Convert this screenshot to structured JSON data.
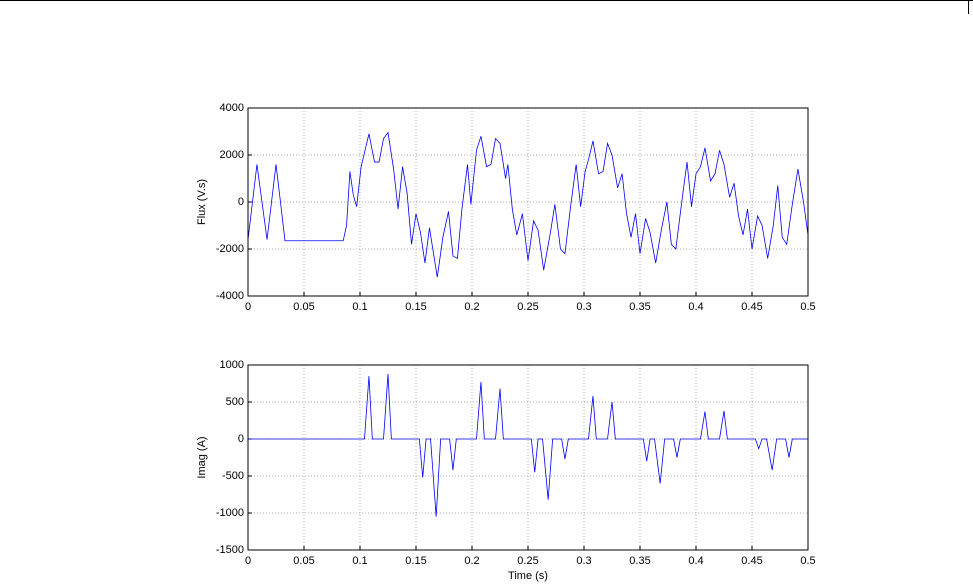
{
  "chart_data": [
    {
      "type": "line",
      "ylabel": "Flux (V.s)",
      "color": "#0000ff",
      "grid": true,
      "xlim": [
        0,
        0.5
      ],
      "xticks": [
        0,
        0.05,
        0.1,
        0.15,
        0.2,
        0.25,
        0.3,
        0.35,
        0.4,
        0.45,
        0.5
      ],
      "ylim": [
        -4000,
        4000
      ],
      "yticks": [
        -4000,
        -2000,
        0,
        2000,
        4000
      ],
      "x": [
        0,
        0.004,
        0.008,
        0.0125,
        0.017,
        0.021,
        0.025,
        0.029,
        0.033,
        0.085,
        0.088,
        0.091,
        0.094,
        0.097,
        0.101,
        0.105,
        0.108,
        0.113,
        0.117,
        0.121,
        0.125,
        0.13,
        0.134,
        0.138,
        0.142,
        0.146,
        0.15,
        0.154,
        0.158,
        0.162,
        0.166,
        0.169,
        0.174,
        0.179,
        0.183,
        0.187,
        0.191,
        0.196,
        0.199,
        0.204,
        0.208,
        0.213,
        0.217,
        0.221,
        0.225,
        0.23,
        0.232,
        0.236,
        0.24,
        0.245,
        0.25,
        0.255,
        0.259,
        0.264,
        0.27,
        0.274,
        0.279,
        0.283,
        0.288,
        0.293,
        0.297,
        0.301,
        0.304,
        0.308,
        0.313,
        0.317,
        0.321,
        0.325,
        0.33,
        0.334,
        0.338,
        0.342,
        0.346,
        0.35,
        0.355,
        0.359,
        0.364,
        0.369,
        0.374,
        0.378,
        0.382,
        0.387,
        0.392,
        0.396,
        0.4,
        0.404,
        0.408,
        0.413,
        0.417,
        0.421,
        0.425,
        0.43,
        0.434,
        0.438,
        0.442,
        0.446,
        0.45,
        0.455,
        0.459,
        0.464,
        0.469,
        0.473,
        0.477,
        0.481,
        0.486,
        0.491,
        0.496,
        0.5
      ],
      "values": [
        -1600,
        0,
        1600,
        0,
        -1600,
        0,
        1600,
        0,
        -1650,
        -1650,
        -1000,
        1300,
        300,
        -200,
        1500,
        2300,
        2900,
        1700,
        1700,
        2700,
        2950,
        1400,
        -300,
        1500,
        400,
        -1800,
        -500,
        -1300,
        -2600,
        -1100,
        -2300,
        -3200,
        -1500,
        -400,
        -2300,
        -2400,
        -300,
        1600,
        -100,
        2200,
        2800,
        1500,
        1600,
        2700,
        2500,
        1000,
        1600,
        -300,
        -1400,
        -500,
        -2500,
        -800,
        -1200,
        -2900,
        -1300,
        -100,
        -2000,
        -2200,
        -200,
        1600,
        -200,
        1300,
        1800,
        2600,
        1200,
        1300,
        2500,
        2000,
        600,
        1200,
        -500,
        -1500,
        -500,
        -2200,
        -700,
        -1300,
        -2600,
        -1200,
        0,
        -1800,
        -2000,
        -100,
        1700,
        -200,
        1200,
        1500,
        2300,
        900,
        1200,
        2200,
        1600,
        200,
        800,
        -600,
        -1400,
        -300,
        -2000,
        -600,
        -1000,
        -2400,
        -1000,
        700,
        -1500,
        -1800,
        -100,
        1400,
        0,
        -1400
      ]
    },
    {
      "type": "line",
      "xlabel": "Time (s)",
      "ylabel": "Imag (A)",
      "color": "#0000ff",
      "grid": true,
      "xlim": [
        0,
        0.5
      ],
      "xticks": [
        0,
        0.05,
        0.1,
        0.15,
        0.2,
        0.25,
        0.3,
        0.35,
        0.4,
        0.45,
        0.5
      ],
      "ylim": [
        -1500,
        1000
      ],
      "yticks": [
        -1500,
        -1000,
        -500,
        0,
        500,
        1000
      ],
      "x": [
        0,
        0.104,
        0.108,
        0.111,
        0.121,
        0.125,
        0.128,
        0.153,
        0.156,
        0.159,
        0.163,
        0.168,
        0.172,
        0.18,
        0.183,
        0.186,
        0.204,
        0.208,
        0.211,
        0.221,
        0.225,
        0.228,
        0.253,
        0.256,
        0.259,
        0.263,
        0.268,
        0.272,
        0.28,
        0.283,
        0.286,
        0.304,
        0.308,
        0.311,
        0.321,
        0.325,
        0.328,
        0.353,
        0.356,
        0.359,
        0.363,
        0.368,
        0.372,
        0.38,
        0.383,
        0.386,
        0.404,
        0.408,
        0.411,
        0.421,
        0.425,
        0.428,
        0.453,
        0.456,
        0.459,
        0.463,
        0.468,
        0.472,
        0.48,
        0.483,
        0.486,
        0.5
      ],
      "values": [
        0,
        0,
        850,
        0,
        0,
        880,
        0,
        0,
        -520,
        0,
        0,
        -1050,
        0,
        0,
        -420,
        0,
        0,
        770,
        0,
        0,
        680,
        0,
        0,
        -450,
        0,
        0,
        -820,
        0,
        0,
        -270,
        0,
        0,
        580,
        0,
        0,
        500,
        0,
        0,
        -300,
        0,
        0,
        -600,
        0,
        0,
        -250,
        0,
        0,
        370,
        0,
        0,
        380,
        0,
        0,
        -130,
        0,
        0,
        -420,
        0,
        0,
        -250,
        0,
        0
      ]
    }
  ]
}
